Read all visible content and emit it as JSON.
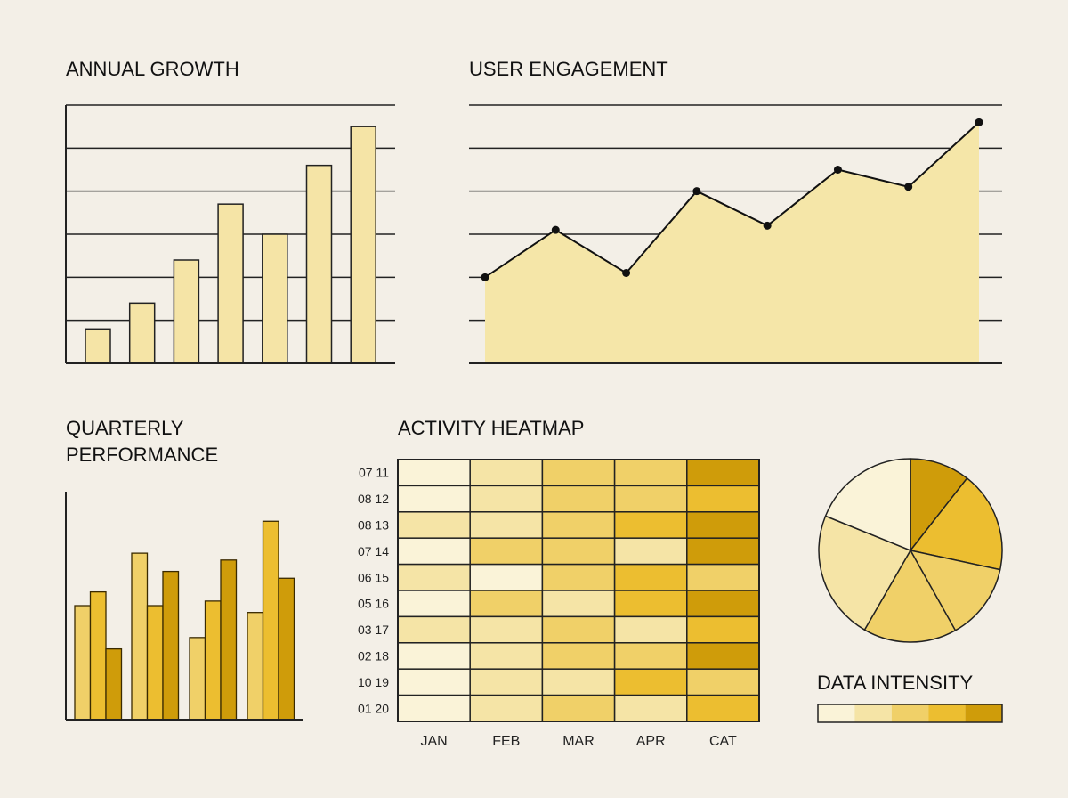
{
  "colors": {
    "background": "#f3efe7",
    "level1": "#faf3d8",
    "level2": "#f5e4a6",
    "level3": "#f0d068",
    "level4": "#ecbe30",
    "level5": "#cf9c0a",
    "outline": "#222222"
  },
  "chart_data": [
    {
      "type": "bar",
      "title": "ANNUAL GROWTH",
      "values": [
        8,
        14,
        24,
        37,
        30,
        46,
        55
      ],
      "ylim": [
        0,
        60
      ],
      "grid": true,
      "xlabel": "",
      "ylabel": ""
    },
    {
      "type": "area",
      "title": "USER ENGAGEMENT",
      "values": [
        20,
        31,
        21,
        40,
        32,
        45,
        41,
        56
      ],
      "ylim": [
        0,
        60
      ],
      "grid": true,
      "markers": true,
      "xlabel": "",
      "ylabel": ""
    },
    {
      "type": "bar",
      "title_lines": [
        "QUARTERLY",
        "PERFORMANCE"
      ],
      "series": [
        {
          "values": [
            50,
            73,
            36,
            47
          ]
        },
        {
          "values": [
            56,
            50,
            52,
            87
          ]
        },
        {
          "values": [
            31,
            65,
            70,
            62
          ]
        }
      ],
      "ylim": [
        0,
        100
      ],
      "grid": false
    },
    {
      "type": "heatmap",
      "title": "ACTIVITY HEATMAP",
      "columns": [
        "JAN",
        "FEB",
        "MAR",
        "APR",
        "CAT"
      ],
      "rows": [
        "07 11",
        "08 12",
        "08 13",
        "07 14",
        "06 15",
        "05 16",
        "03 17",
        "02 18",
        "10 19",
        "01 20"
      ],
      "values": [
        [
          1,
          2,
          3,
          3,
          5
        ],
        [
          1,
          2,
          3,
          3,
          4
        ],
        [
          2,
          2,
          3,
          4,
          5
        ],
        [
          1,
          3,
          3,
          2,
          5
        ],
        [
          2,
          1,
          3,
          4,
          3
        ],
        [
          1,
          3,
          2,
          4,
          5
        ],
        [
          2,
          2,
          3,
          2,
          4
        ],
        [
          1,
          2,
          3,
          3,
          5
        ],
        [
          1,
          2,
          2,
          4,
          3
        ],
        [
          1,
          2,
          3,
          2,
          4
        ]
      ],
      "scale": [
        1,
        5
      ]
    },
    {
      "type": "pie",
      "values": [
        10.6,
        17.8,
        13.5,
        16.5,
        22.8,
        18.9
      ],
      "levels": [
        5,
        4,
        3,
        3,
        2,
        1
      ]
    },
    {
      "type": "legend",
      "title": "DATA INTENSITY",
      "levels": [
        1,
        2,
        3,
        4,
        5
      ]
    }
  ]
}
